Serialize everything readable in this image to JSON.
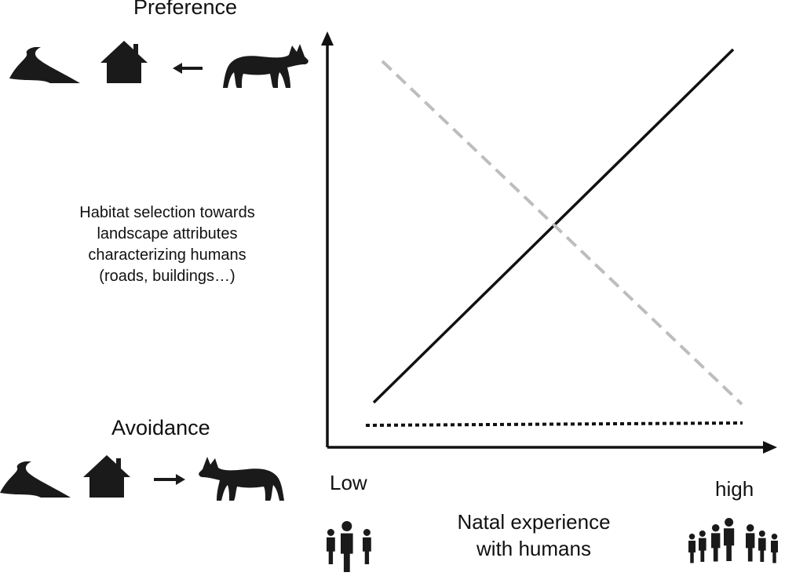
{
  "labels": {
    "preference": "Preference",
    "avoidance": "Avoidance",
    "y_axis": [
      "Habitat selection towards",
      "landscape attributes",
      "characterizing humans",
      "(roads, buildings…)"
    ],
    "x_low": "Low",
    "x_high": "high",
    "x_axis": [
      "Natal experience",
      "with humans"
    ]
  },
  "icons": {
    "preference_row": [
      "road-icon",
      "house-icon",
      "arrow-left-icon",
      "wolf-icon"
    ],
    "avoidance_row": [
      "road-icon",
      "house-icon",
      "arrow-right-icon",
      "wolf-icon"
    ],
    "x_low_icon": "small-crowd-icon",
    "x_high_icon": "large-crowd-icon"
  },
  "colors": {
    "solid_line": "#111111",
    "dashed_line": "#bdbdbd",
    "dotted_line": "#111111",
    "icon_fill": "#1a1a1a"
  }
}
